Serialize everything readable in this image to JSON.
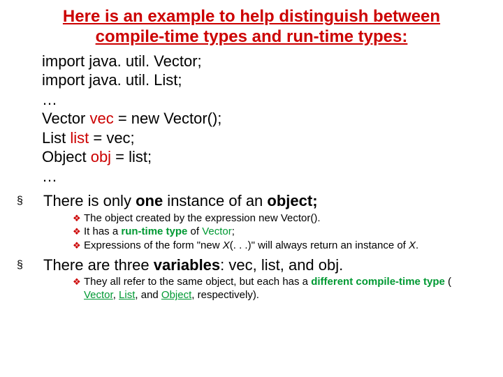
{
  "colors": {
    "title": "#cc0000",
    "body": "#000000",
    "accent": "#cc0000",
    "highlight": "#009933",
    "background": "#ffffff"
  },
  "typography": {
    "title_fontsize": 24,
    "code_fontsize": 22,
    "level1_fontsize": 22,
    "level2_fontsize": 15,
    "font_family": "Arial"
  },
  "title_line1": "Here is an example to help distinguish between",
  "title_line2": "compile-time types and run-time types:",
  "code": {
    "l1": "import java. util. Vector;",
    "l2": "import java. util. List;",
    "l3": "…",
    "l4a": "Vector ",
    "l4b": "vec",
    "l4c": " = new Vector();",
    "l5a": "List ",
    "l5b": "list",
    "l5c": " = vec;",
    "l6a": "Object ",
    "l6b": "obj",
    "l6c": " = list;",
    "l7": "…"
  },
  "p1": {
    "a": "There is only ",
    "b": "one",
    "c": " instance of an ",
    "d": "object;"
  },
  "p1s1": "The object created by the expression new Vector().",
  "p1s2a": "It has a ",
  "p1s2b": "run-time type",
  "p1s2c": " of ",
  "p1s2d": "Vector",
  "p1s2e": ";",
  "p1s3a": "Expressions of the form \"new ",
  "p1s3b": "X",
  "p1s3c": "(. . .)\" will always return an instance of ",
  "p1s3d": "X",
  "p1s3e": ".",
  "p2a": "There are three ",
  "p2b": "variables",
  "p2c": ": vec, list, and obj.",
  "p2s1a": "They all refer to the same object, but each has a ",
  "p2s1b": "different compile-time type",
  "p2s1c": " ( ",
  "p2s1d": "Vector",
  "p2s1e": ", ",
  "p2s1f": "List",
  "p2s1g": ", and ",
  "p2s1h": "Object",
  "p2s1i": ", respectively).",
  "bullets": {
    "square": "§",
    "diamond": "❖"
  }
}
